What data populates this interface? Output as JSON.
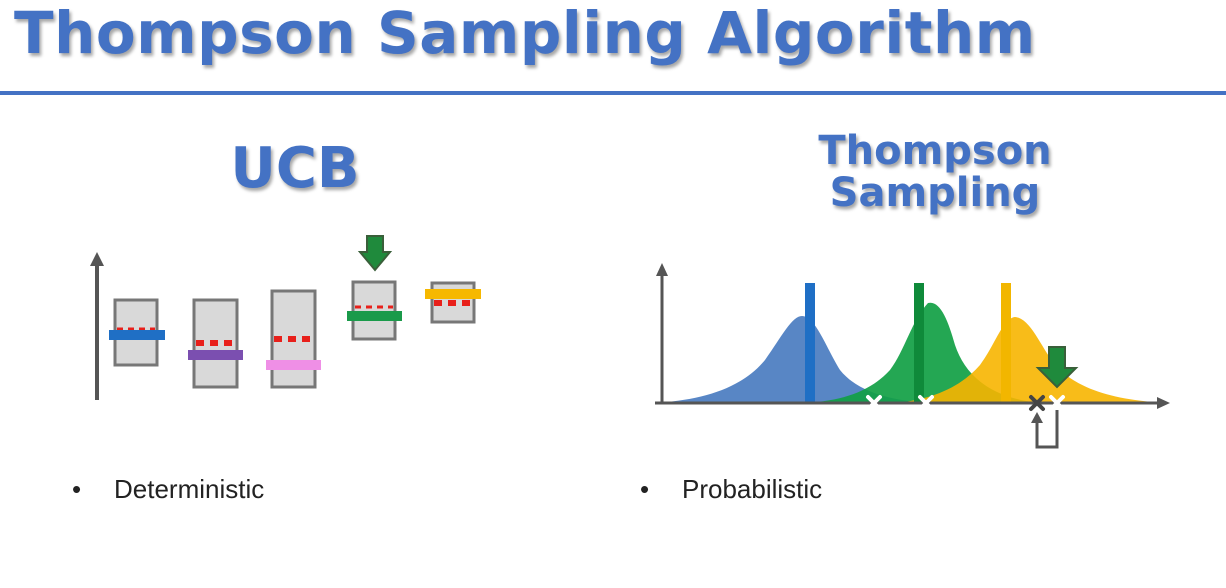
{
  "slide": {
    "title": "Thompson Sampling Algorithm",
    "accent_color": "#4472c4"
  },
  "ucb": {
    "heading": "UCB",
    "bullet": "Deterministic",
    "bullet_marker": "•",
    "bar_colors": [
      "#1f6fc5",
      "#7b4fb0",
      "#ef8fe6",
      "#1a9a4a",
      "#f6b800"
    ],
    "selected_arm_index": 3,
    "marker_icon": "down-arrow-icon"
  },
  "thompson": {
    "heading_line1": "Thompson",
    "heading_line2": "Sampling",
    "bullet": "Probabilistic",
    "bullet_marker": "•",
    "distribution_colors": [
      "#4a7cc0",
      "#11a044",
      "#f7b500"
    ],
    "selected_distribution_index": 2,
    "marker_icon": "down-arrow-icon",
    "sample_marker_icon": "x-icon"
  }
}
